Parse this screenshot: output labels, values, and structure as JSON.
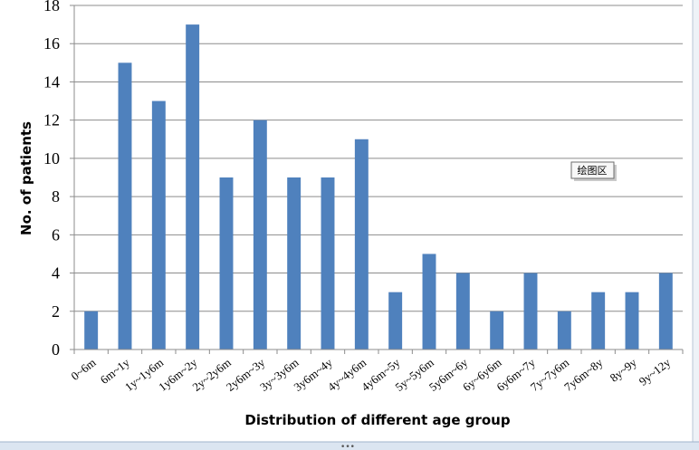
{
  "chart_data": {
    "type": "bar",
    "title": "",
    "xlabel": "Distribution of different age  group",
    "ylabel": "No. of patients",
    "ylim": [
      0,
      18
    ],
    "yticks": [
      0,
      2,
      4,
      6,
      8,
      10,
      12,
      14,
      16,
      18
    ],
    "grid": true,
    "bar_color": "#4f81bd",
    "categories": [
      "0~6m",
      "6m~1y",
      "1y~1y6m",
      "1y6m~2y",
      "2y~2y6m",
      "2y6m~3y",
      "3y~3y6m",
      "3y6m~4y",
      "4y~4y6m",
      "4y6m~5y",
      "5y~5y6m",
      "5y6m~6y",
      "6y~6y6m",
      "6y6m~7y",
      "7y~7y6m",
      "7y6m~8y",
      "8y~9y",
      "9y~12y"
    ],
    "values": [
      2,
      15,
      13,
      17,
      9,
      12,
      9,
      9,
      11,
      3,
      5,
      4,
      2,
      4,
      2,
      3,
      3,
      4
    ]
  },
  "tooltip": {
    "label": "绘图区"
  }
}
